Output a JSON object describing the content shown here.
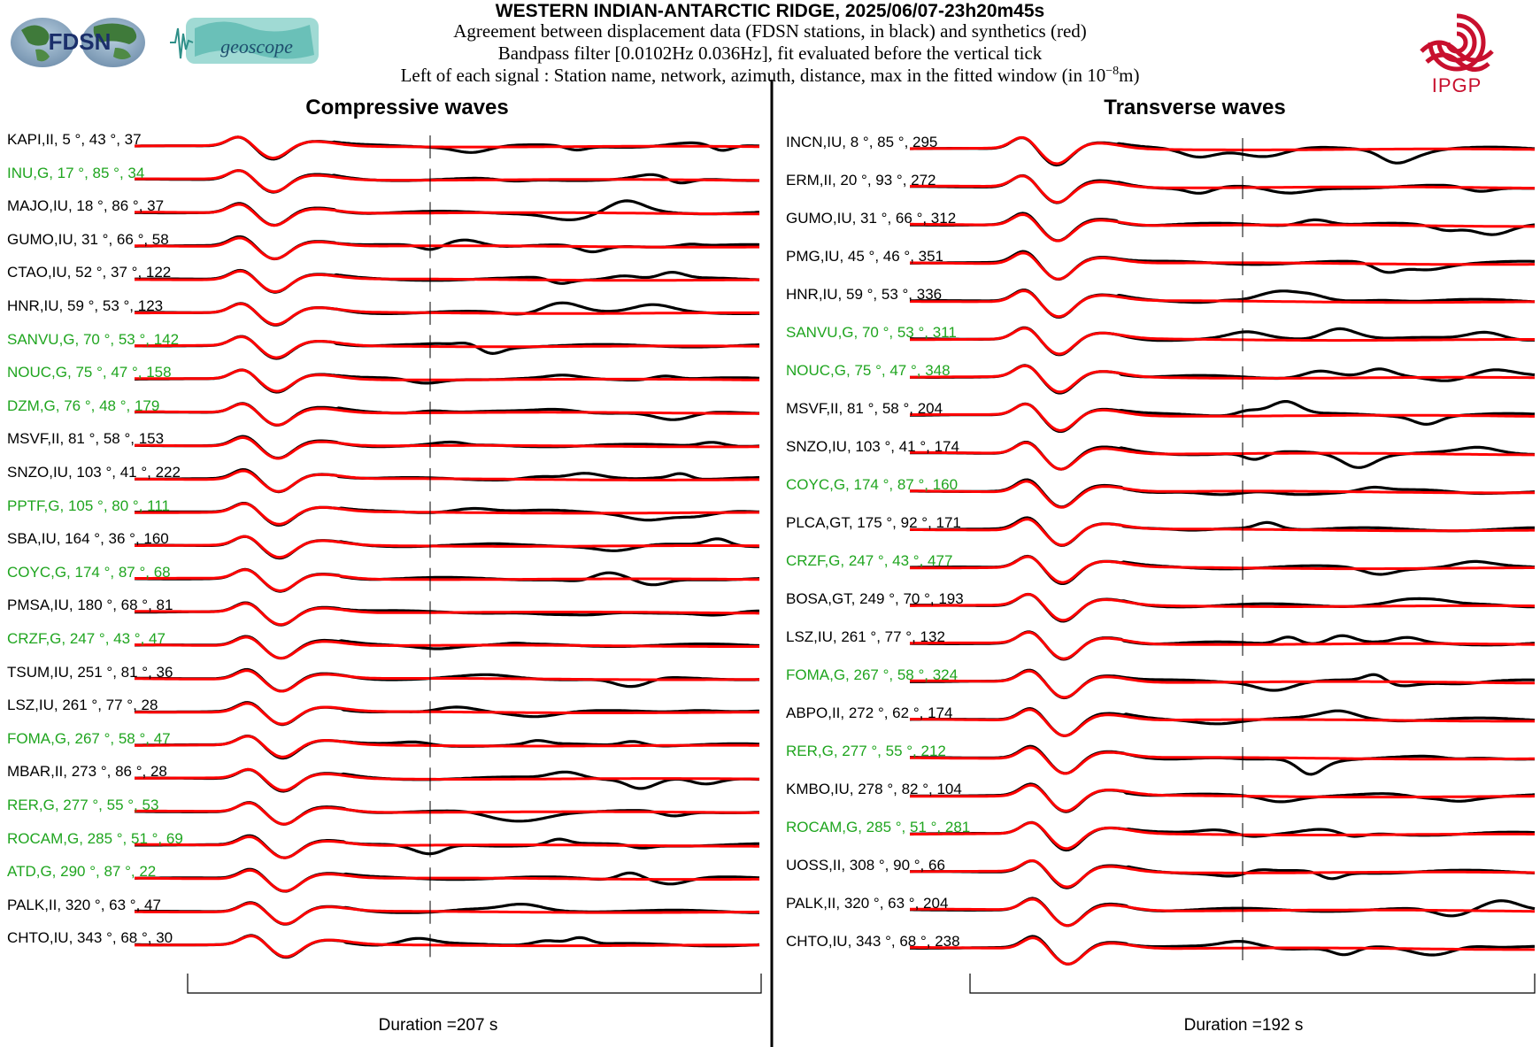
{
  "header": {
    "title": "WESTERN INDIAN-ANTARCTIC RIDGE, 2025/06/07-23h20m45s",
    "line1": "Agreement between displacement data (FDSN stations, in black) and synthetics (red)",
    "line2": "Bandpass filter [0.0102Hz 0.036Hz], fit evaluated before the vertical tick",
    "line3_prefix": "Left of each signal : Station name, network, azimuth, distance, max in the fitted window (in 10",
    "line3_exp": "−8",
    "line3_suffix": "m)"
  },
  "logos": {
    "fdsn": "FDSN",
    "geoscope": "geoscope",
    "ipgp": "IPGP"
  },
  "colors": {
    "data": "#000000",
    "synthetic": "#ff0000",
    "label_black": "#000000",
    "label_green": "#1fa51f",
    "ipgp_red": "#c8102e"
  },
  "chart_data": [
    {
      "type": "line",
      "title": "Compressive waves",
      "series": [
        {
          "name": "data",
          "color": "#000000"
        },
        {
          "name": "synthetics",
          "color": "#ff0000"
        }
      ],
      "duration_label": "Duration =207 s",
      "duration_s": 207,
      "stations": [
        {
          "label": "KAPI,II, 5 °, 43 °, 37",
          "color": "black"
        },
        {
          "label": "INU,G, 17 °, 85 °, 34",
          "color": "green"
        },
        {
          "label": "MAJO,IU, 18 °, 86 °, 37",
          "color": "black"
        },
        {
          "label": "GUMO,IU, 31 °, 66 °, 58",
          "color": "black"
        },
        {
          "label": "CTAO,IU, 52 °, 37 °, 122",
          "color": "black"
        },
        {
          "label": "HNR,IU, 59 °, 53 °, 123",
          "color": "black"
        },
        {
          "label": "SANVU,G, 70 °, 53 °, 142",
          "color": "green"
        },
        {
          "label": "NOUC,G, 75 °, 47 °, 158",
          "color": "green"
        },
        {
          "label": "DZM,G, 76 °, 48 °, 179",
          "color": "green"
        },
        {
          "label": "MSVF,II, 81 °, 58 °, 153",
          "color": "black"
        },
        {
          "label": "SNZO,IU, 103 °, 41 °, 222",
          "color": "black"
        },
        {
          "label": "PPTF,G, 105 °, 80 °, 111",
          "color": "green"
        },
        {
          "label": "SBA,IU, 164 °, 36 °, 160",
          "color": "black"
        },
        {
          "label": "COYC,G, 174 °, 87 °, 68",
          "color": "green"
        },
        {
          "label": "PMSA,IU, 180 °, 68 °, 81",
          "color": "black"
        },
        {
          "label": "CRZF,G, 247 °, 43 °, 47",
          "color": "green"
        },
        {
          "label": "TSUM,IU, 251 °, 81 °, 36",
          "color": "black"
        },
        {
          "label": "LSZ,IU, 261 °, 77 °, 28",
          "color": "black"
        },
        {
          "label": "FOMA,G, 267 °, 58 °, 47",
          "color": "green"
        },
        {
          "label": "MBAR,II, 273 °, 86 °, 28",
          "color": "black"
        },
        {
          "label": "RER,G, 277 °, 55 °, 53",
          "color": "green"
        },
        {
          "label": "ROCAM,G, 285 °, 51 °, 69",
          "color": "green"
        },
        {
          "label": "ATD,G, 290 °, 87 °, 22",
          "color": "green"
        },
        {
          "label": "PALK,II, 320 °, 63 °, 47",
          "color": "black"
        },
        {
          "label": "CHTO,IU, 343 °, 68 °, 30",
          "color": "black"
        }
      ]
    },
    {
      "type": "line",
      "title": "Transverse waves",
      "series": [
        {
          "name": "data",
          "color": "#000000"
        },
        {
          "name": "synthetics",
          "color": "#ff0000"
        }
      ],
      "duration_label": "Duration =192 s",
      "duration_s": 192,
      "stations": [
        {
          "label": "INCN,IU, 8 °, 85 °, 295",
          "color": "black"
        },
        {
          "label": "ERM,II, 20 °, 93 °, 272",
          "color": "black"
        },
        {
          "label": "GUMO,IU, 31 °, 66 °, 312",
          "color": "black"
        },
        {
          "label": "PMG,IU, 45 °, 46 °, 351",
          "color": "black"
        },
        {
          "label": "HNR,IU, 59 °, 53 °, 336",
          "color": "black"
        },
        {
          "label": "SANVU,G, 70 °, 53 °, 311",
          "color": "green"
        },
        {
          "label": "NOUC,G, 75 °, 47 °, 348",
          "color": "green"
        },
        {
          "label": "MSVF,II, 81 °, 58 °, 204",
          "color": "black"
        },
        {
          "label": "SNZO,IU, 103 °, 41 °, 174",
          "color": "black"
        },
        {
          "label": "COYC,G, 174 °, 87 °, 160",
          "color": "green"
        },
        {
          "label": "PLCA,GT, 175 °, 92 °, 171",
          "color": "black"
        },
        {
          "label": "CRZF,G, 247 °, 43 °, 477",
          "color": "green"
        },
        {
          "label": "BOSA,GT, 249 °, 70 °, 193",
          "color": "black"
        },
        {
          "label": "LSZ,IU, 261 °, 77 °, 132",
          "color": "black"
        },
        {
          "label": "FOMA,G, 267 °, 58 °, 324",
          "color": "green"
        },
        {
          "label": "ABPO,II, 272 °, 62 °, 174",
          "color": "black"
        },
        {
          "label": "RER,G, 277 °, 55 °, 212",
          "color": "green"
        },
        {
          "label": "KMBO,IU, 278 °, 82 °, 104",
          "color": "black"
        },
        {
          "label": "ROCAM,G, 285 °, 51 °, 281",
          "color": "green"
        },
        {
          "label": "UOSS,II, 308 °, 90 °, 66",
          "color": "black"
        },
        {
          "label": "PALK,II, 320 °, 63 °, 204",
          "color": "black"
        },
        {
          "label": "CHTO,IU, 343 °, 68 °, 238",
          "color": "black"
        }
      ]
    }
  ]
}
